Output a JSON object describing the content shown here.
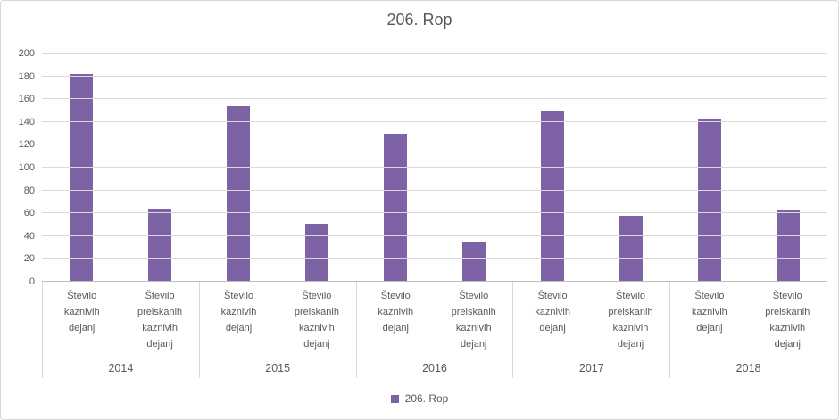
{
  "chart_data": {
    "type": "bar",
    "title": "206. Rop",
    "legend_label": "206. Rop",
    "legend_position": "bottom",
    "bar_color": "#7D63A5",
    "grid": true,
    "gridline_color": "#D9D9D9",
    "text_color": "#595959",
    "ylim": [
      0,
      200
    ],
    "y_ticks": [
      0,
      20,
      40,
      60,
      80,
      100,
      120,
      140,
      160,
      180,
      200
    ],
    "leaf_labels": [
      "Število kaznivih dejanj",
      "Število preiskanih kaznivih dejanj"
    ],
    "groups": [
      {
        "label": "2014",
        "values": [
          182,
          64
        ]
      },
      {
        "label": "2015",
        "values": [
          154,
          51
        ]
      },
      {
        "label": "2016",
        "values": [
          130,
          35
        ]
      },
      {
        "label": "2017",
        "values": [
          150,
          58
        ]
      },
      {
        "label": "2018",
        "values": [
          142,
          63
        ]
      }
    ]
  }
}
